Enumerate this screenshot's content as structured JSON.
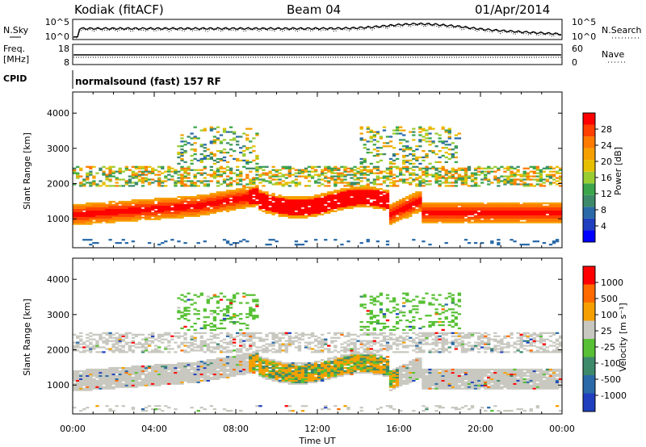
{
  "header": {
    "station": "Kodiak (fitACF)",
    "beam": "Beam 04",
    "date": "01/Apr/2014"
  },
  "strip_panels": {
    "nsky": {
      "left_label": "N.Sky",
      "right_label": "N.Search",
      "left_ticks": [
        "10^5",
        "10^0"
      ],
      "right_ticks": [
        "10^5",
        "10^0"
      ]
    },
    "freq": {
      "left_label_1": "Freq.",
      "left_label_2": "[MHz]",
      "right_label": "Nave",
      "left_ticks": [
        "18",
        "8"
      ],
      "right_ticks": [
        "60",
        "0"
      ]
    },
    "cpid": {
      "label": "CPID",
      "text": "normalsound (fast) 157 RF"
    }
  },
  "chart_data": [
    {
      "type": "heatmap",
      "name": "power",
      "ylabel": "Slant Range [km]",
      "x_ticks": [
        "00:00",
        "04:00",
        "08:00",
        "12:00",
        "16:00",
        "20:00",
        "00:00"
      ],
      "y_ticks": [
        "1000",
        "2000",
        "3000",
        "4000"
      ],
      "xlim": [
        0,
        24
      ],
      "ylim": [
        180,
        4600
      ],
      "colorbar": {
        "label": "Power [dB]",
        "ticks": [
          "4",
          "8",
          "12",
          "16",
          "20",
          "24",
          "28"
        ],
        "colors": [
          "#0000ff",
          "#1f3fbf",
          "#2a6aa8",
          "#3d8a6a",
          "#3aa54a",
          "#9acd32",
          "#e6c000",
          "#f5a000",
          "#ff7a00",
          "#ff4000",
          "#ff0000"
        ]
      }
    },
    {
      "type": "heatmap",
      "name": "velocity",
      "ylabel": "Slant Range [km]",
      "x_ticks": [
        "00:00",
        "04:00",
        "08:00",
        "12:00",
        "16:00",
        "20:00",
        "00:00"
      ],
      "y_ticks": [
        "1000",
        "2000",
        "3000",
        "4000"
      ],
      "xlim": [
        0,
        24
      ],
      "ylim": [
        180,
        4600
      ],
      "xlabel": "Time UT",
      "colorbar": {
        "label": "Velocity [m s⁻¹]",
        "ticks": [
          "1000",
          "500",
          "100",
          "25",
          "-25",
          "-100",
          "-500",
          "-1000"
        ],
        "colors": [
          "#1f3fbf",
          "#2a6aa8",
          "#3d8a6a",
          "#57c034",
          "#c8c8c0",
          "#f5a000",
          "#ff6a00",
          "#ff0000"
        ]
      }
    }
  ]
}
